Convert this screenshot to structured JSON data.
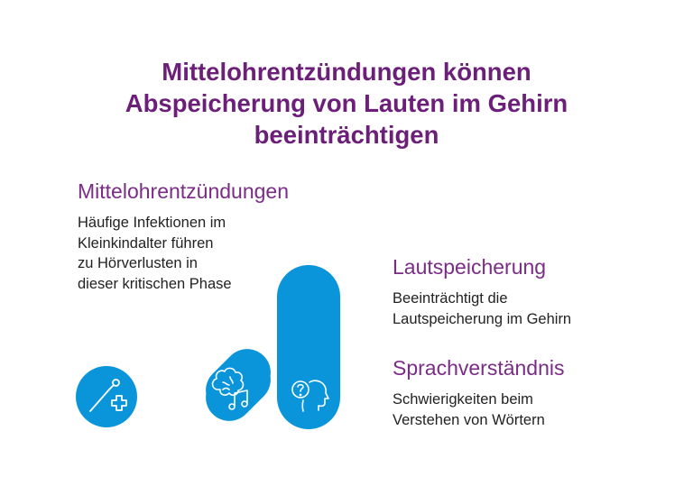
{
  "title": {
    "lines": [
      "Mittelohrentzündungen können",
      "Abspeicherung von Lauten im Gehirn",
      "beeinträchtigen"
    ]
  },
  "sections": [
    {
      "heading": "Mittelohrentzündungen",
      "lines": [
        "Häufige Infektionen im",
        "Kleinkindalter führen",
        "zu Hörverlusten in",
        "dieser kritischen Phase"
      ]
    },
    {
      "heading": "Lautspeicherung",
      "lines": [
        "Beeinträchtigt die",
        "Lautspeicherung im Gehirn"
      ]
    },
    {
      "heading": "Sprachverständnis",
      "lines": [
        "Schwierigkeiten beim",
        "Verstehen von Wörtern"
      ]
    }
  ],
  "colors": {
    "title": "#6b1f78",
    "heading": "#7a2c86",
    "accent_blue": "#0a95db",
    "text": "#222222"
  },
  "icons": [
    "otoscope-plus-icon",
    "brain-music-icon",
    "head-question-icon"
  ]
}
